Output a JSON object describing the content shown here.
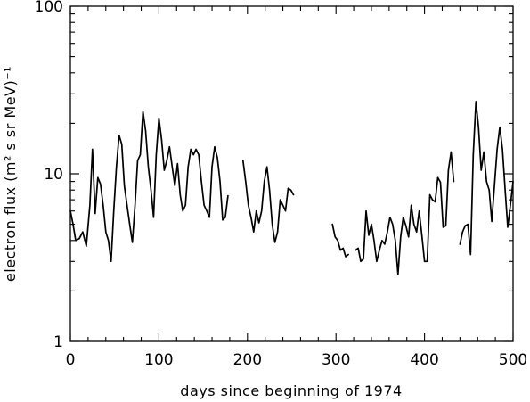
{
  "chart_data": {
    "type": "line",
    "xlabel": "days since beginning of 1974",
    "ylabel": "electron flux (m² s sr MeV)⁻¹",
    "xlim": [
      0,
      500
    ],
    "ylim": [
      1,
      100
    ],
    "yscale": "log",
    "grid": false,
    "x_ticks": [
      0,
      100,
      200,
      300,
      400,
      500
    ],
    "x_tick_labels": [
      "0",
      "100",
      "200",
      "300",
      "400",
      "500"
    ],
    "y_ticks": [
      1,
      10,
      100
    ],
    "y_tick_labels": [
      "1",
      "10",
      "100"
    ],
    "series": [
      {
        "segments": [
          [
            [
              0,
              6.0
            ],
            [
              3,
              5.0
            ],
            [
              6,
              4.0
            ],
            [
              10,
              4.1
            ],
            [
              14,
              4.5
            ],
            [
              18,
              3.7
            ],
            [
              22,
              6.5
            ],
            [
              25,
              14.0
            ],
            [
              28,
              5.8
            ],
            [
              31,
              9.5
            ],
            [
              34,
              8.7
            ],
            [
              37,
              6.5
            ],
            [
              40,
              4.5
            ],
            [
              43,
              4.0
            ],
            [
              46,
              3.0
            ],
            [
              49,
              6.0
            ],
            [
              52,
              11.0
            ],
            [
              55,
              17.0
            ],
            [
              58,
              15.0
            ],
            [
              61,
              8.5
            ],
            [
              64,
              6.5
            ],
            [
              67,
              5.0
            ],
            [
              70,
              3.9
            ],
            [
              73,
              6.5
            ],
            [
              76,
              12.0
            ],
            [
              79,
              13.0
            ],
            [
              82,
              23.5
            ],
            [
              85,
              18.0
            ],
            [
              88,
              11.0
            ],
            [
              91,
              8.0
            ],
            [
              94,
              5.5
            ],
            [
              97,
              13.0
            ],
            [
              100,
              21.5
            ],
            [
              103,
              16.0
            ],
            [
              106,
              10.5
            ],
            [
              109,
              12.0
            ],
            [
              112,
              14.5
            ],
            [
              115,
              11.0
            ],
            [
              118,
              8.5
            ],
            [
              121,
              11.5
            ],
            [
              124,
              7.5
            ],
            [
              127,
              6.0
            ],
            [
              130,
              6.5
            ],
            [
              133,
              11.0
            ],
            [
              136,
              14.0
            ],
            [
              139,
              13.0
            ],
            [
              142,
              14.0
            ],
            [
              145,
              13.0
            ],
            [
              148,
              9.0
            ],
            [
              151,
              6.5
            ],
            [
              154,
              6.0
            ],
            [
              157,
              5.5
            ],
            [
              160,
              11.0
            ],
            [
              163,
              14.5
            ],
            [
              166,
              12.5
            ],
            [
              169,
              9.0
            ],
            [
              172,
              5.3
            ],
            [
              175,
              5.5
            ],
            [
              178,
              7.4
            ]
          ],
          [
            [
              195,
              12.0
            ],
            [
              198,
              9.0
            ],
            [
              201,
              6.5
            ],
            [
              204,
              5.5
            ],
            [
              207,
              4.5
            ],
            [
              210,
              6.0
            ],
            [
              213,
              5.1
            ],
            [
              216,
              6.0
            ],
            [
              219,
              9.0
            ],
            [
              222,
              11.0
            ],
            [
              225,
              8.0
            ],
            [
              228,
              5.0
            ],
            [
              231,
              3.9
            ],
            [
              234,
              4.5
            ],
            [
              237,
              7.0
            ],
            [
              240,
              6.5
            ],
            [
              243,
              6.0
            ],
            [
              246,
              8.2
            ],
            [
              249,
              8.0
            ],
            [
              252,
              7.5
            ]
          ],
          [
            [
              296,
              5.0
            ],
            [
              299,
              4.2
            ],
            [
              302,
              4.0
            ],
            [
              305,
              3.5
            ],
            [
              308,
              3.6
            ],
            [
              311,
              3.2
            ],
            [
              314,
              3.3
            ]
          ],
          [
            [
              322,
              3.5
            ],
            [
              325,
              3.6
            ],
            [
              328,
              3.0
            ],
            [
              331,
              3.1
            ],
            [
              334,
              6.0
            ],
            [
              337,
              4.3
            ],
            [
              340,
              5.0
            ],
            [
              343,
              4.0
            ],
            [
              346,
              3.0
            ],
            [
              349,
              3.5
            ],
            [
              352,
              4.0
            ],
            [
              355,
              3.8
            ],
            [
              358,
              4.5
            ],
            [
              361,
              5.5
            ],
            [
              364,
              5.0
            ],
            [
              367,
              4.0
            ],
            [
              370,
              2.5
            ],
            [
              373,
              4.2
            ],
            [
              376,
              5.5
            ],
            [
              379,
              4.9
            ],
            [
              382,
              4.2
            ],
            [
              385,
              6.5
            ],
            [
              388,
              5.0
            ],
            [
              391,
              4.5
            ],
            [
              394,
              6.0
            ],
            [
              397,
              4.3
            ],
            [
              400,
              3.0
            ],
            [
              403,
              3.0
            ],
            [
              406,
              7.5
            ],
            [
              409,
              7.0
            ],
            [
              412,
              6.8
            ],
            [
              415,
              9.5
            ],
            [
              418,
              8.9
            ],
            [
              421,
              4.8
            ],
            [
              424,
              4.9
            ],
            [
              427,
              10.5
            ],
            [
              430,
              13.5
            ],
            [
              433,
              9.0
            ]
          ],
          [
            [
              440,
              3.8
            ],
            [
              443,
              4.5
            ],
            [
              446,
              4.9
            ],
            [
              449,
              5.0
            ],
            [
              452,
              3.3
            ],
            [
              455,
              13.0
            ],
            [
              458,
              27.0
            ],
            [
              461,
              19.0
            ],
            [
              464,
              10.5
            ],
            [
              467,
              13.5
            ],
            [
              470,
              9.0
            ],
            [
              473,
              8.0
            ],
            [
              476,
              5.2
            ],
            [
              479,
              8.5
            ],
            [
              482,
              14.0
            ],
            [
              485,
              19.0
            ],
            [
              488,
              14.0
            ],
            [
              491,
              8.0
            ],
            [
              494,
              4.8
            ],
            [
              497,
              6.5
            ],
            [
              500,
              9.0
            ]
          ]
        ]
      }
    ]
  }
}
